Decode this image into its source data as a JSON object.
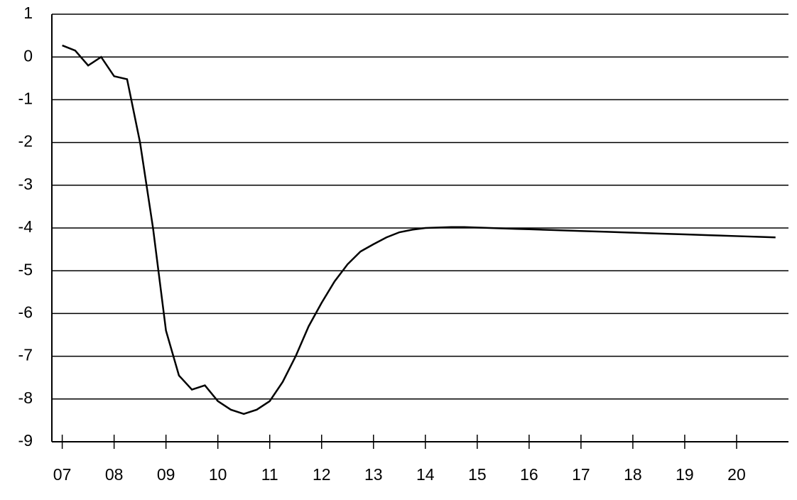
{
  "chart_data": {
    "type": "line",
    "x": [
      7.0,
      7.25,
      7.5,
      7.75,
      8.0,
      8.25,
      8.5,
      8.75,
      9.0,
      9.25,
      9.5,
      9.75,
      10.0,
      10.25,
      10.5,
      10.75,
      11.0,
      11.25,
      11.5,
      11.75,
      12.0,
      12.25,
      12.5,
      12.75,
      13.0,
      13.25,
      13.5,
      13.75,
      14.0,
      14.25,
      14.5,
      14.75,
      15.0,
      15.25,
      15.5,
      15.75,
      16.0,
      16.5,
      17.0,
      17.5,
      18.0,
      18.5,
      19.0,
      19.5,
      20.0,
      20.5,
      20.75
    ],
    "series": [
      {
        "color": "#000000",
        "values": [
          0.27,
          0.15,
          -0.2,
          0.0,
          -0.45,
          -0.52,
          -2.0,
          -4.0,
          -6.4,
          -7.45,
          -7.78,
          -7.68,
          -8.05,
          -8.25,
          -8.35,
          -8.25,
          -8.05,
          -7.6,
          -7.0,
          -6.3,
          -5.75,
          -5.25,
          -4.85,
          -4.55,
          -4.38,
          -4.22,
          -4.1,
          -4.04,
          -4.0,
          -3.99,
          -3.98,
          -3.98,
          -3.99,
          -4.0,
          -4.01,
          -4.02,
          -4.03,
          -4.05,
          -4.07,
          -4.09,
          -4.11,
          -4.13,
          -4.15,
          -4.17,
          -4.19,
          -4.21,
          -4.22
        ]
      }
    ],
    "xlim": [
      6.8,
      21.0
    ],
    "xticks": [
      {
        "value": 7,
        "label": "07"
      },
      {
        "value": 8,
        "label": "08"
      },
      {
        "value": 9,
        "label": "09"
      },
      10,
      11,
      12,
      13,
      14,
      15,
      16,
      17,
      18,
      19,
      20
    ],
    "ylim": [
      -9,
      1
    ],
    "yticks": [
      -9,
      -8,
      -7,
      -6,
      -5,
      -4,
      -3,
      -2,
      -1,
      0,
      1
    ],
    "grid": true
  }
}
